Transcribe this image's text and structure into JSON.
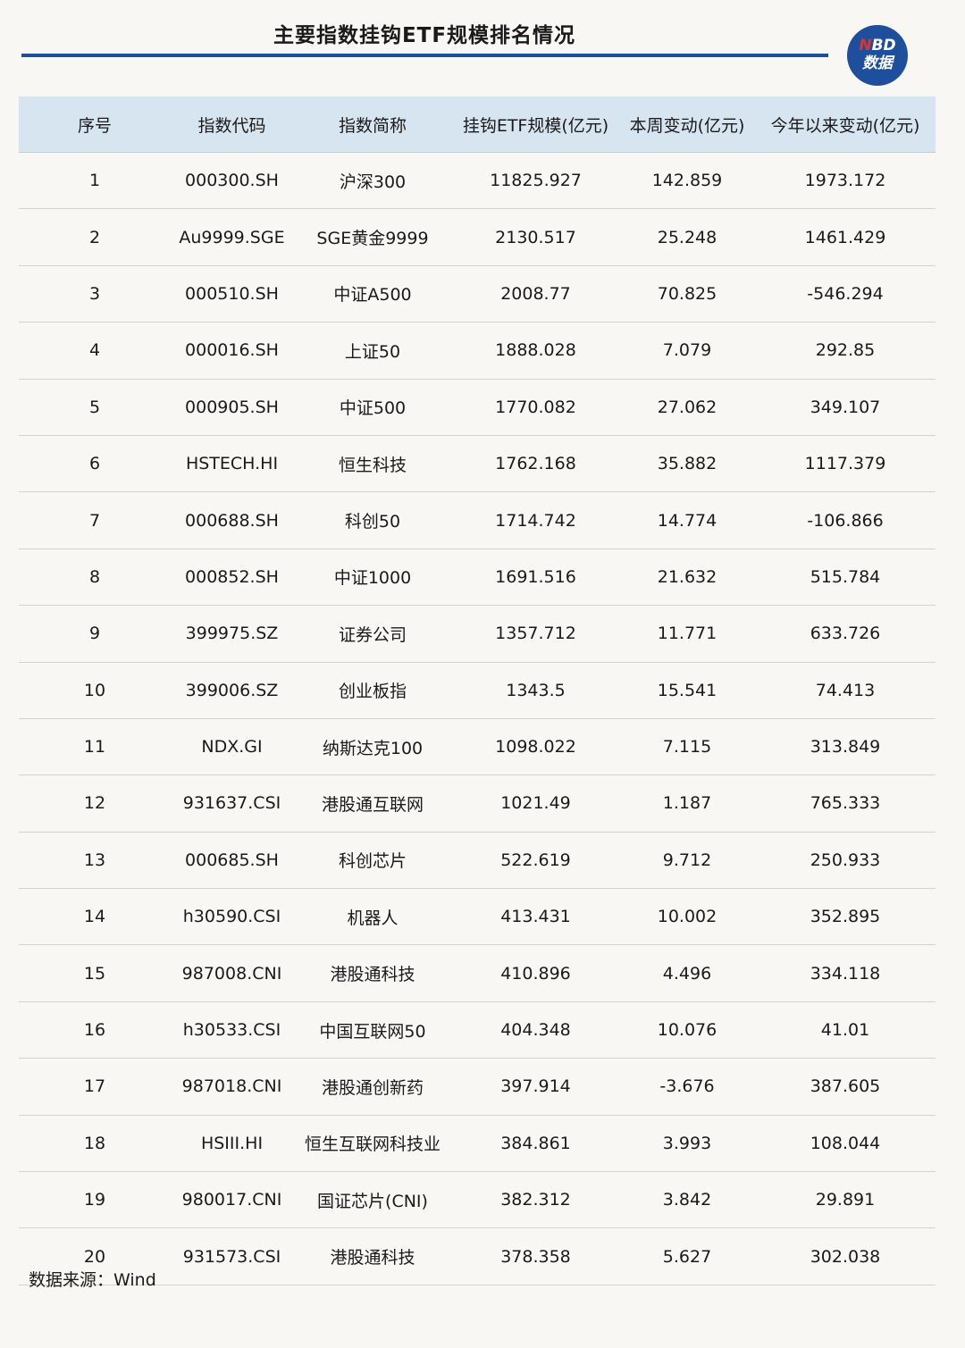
{
  "title": "主要指数挂钩ETF规模排名情况",
  "logo": {
    "line1_n": "N",
    "line1_rest": "BD",
    "line2": "数据",
    "brand_color": "#1d4f9c"
  },
  "table": {
    "headers": [
      "序号",
      "指数代码",
      "指数简称",
      "挂钩ETF规模(亿元)",
      "本周变动(亿元)",
      "今年以来变动(亿元)"
    ],
    "rows": [
      [
        "1",
        "000300.SH",
        "沪深300",
        "11825.927",
        "142.859",
        "1973.172"
      ],
      [
        "2",
        "Au9999.SGE",
        "SGE黄金9999",
        "2130.517",
        "25.248",
        "1461.429"
      ],
      [
        "3",
        "000510.SH",
        "中证A500",
        "2008.77",
        "70.825",
        "-546.294"
      ],
      [
        "4",
        "000016.SH",
        "上证50",
        "1888.028",
        "7.079",
        "292.85"
      ],
      [
        "5",
        "000905.SH",
        "中证500",
        "1770.082",
        "27.062",
        "349.107"
      ],
      [
        "6",
        "HSTECH.HI",
        "恒生科技",
        "1762.168",
        "35.882",
        "1117.379"
      ],
      [
        "7",
        "000688.SH",
        "科创50",
        "1714.742",
        "14.774",
        "-106.866"
      ],
      [
        "8",
        "000852.SH",
        "中证1000",
        "1691.516",
        "21.632",
        "515.784"
      ],
      [
        "9",
        "399975.SZ",
        "证券公司",
        "1357.712",
        "11.771",
        "633.726"
      ],
      [
        "10",
        "399006.SZ",
        "创业板指",
        "1343.5",
        "15.541",
        "74.413"
      ],
      [
        "11",
        "NDX.GI",
        "纳斯达克100",
        "1098.022",
        "7.115",
        "313.849"
      ],
      [
        "12",
        "931637.CSI",
        "港股通互联网",
        "1021.49",
        "1.187",
        "765.333"
      ],
      [
        "13",
        "000685.SH",
        "科创芯片",
        "522.619",
        "9.712",
        "250.933"
      ],
      [
        "14",
        "h30590.CSI",
        "机器人",
        "413.431",
        "10.002",
        "352.895"
      ],
      [
        "15",
        "987008.CNI",
        "港股通科技",
        "410.896",
        "4.496",
        "334.118"
      ],
      [
        "16",
        "h30533.CSI",
        "中国互联网50",
        "404.348",
        "10.076",
        "41.01"
      ],
      [
        "17",
        "987018.CNI",
        "港股通创新药",
        "397.914",
        "-3.676",
        "387.605"
      ],
      [
        "18",
        "HSIII.HI",
        "恒生互联网科技业",
        "384.861",
        "3.993",
        "108.044"
      ],
      [
        "19",
        "980017.CNI",
        "国证芯片(CNI)",
        "382.312",
        "3.842",
        "29.891"
      ],
      [
        "20",
        "931573.CSI",
        "港股通科技",
        "378.358",
        "5.627",
        "302.038"
      ]
    ]
  },
  "source": "数据来源：Wind"
}
